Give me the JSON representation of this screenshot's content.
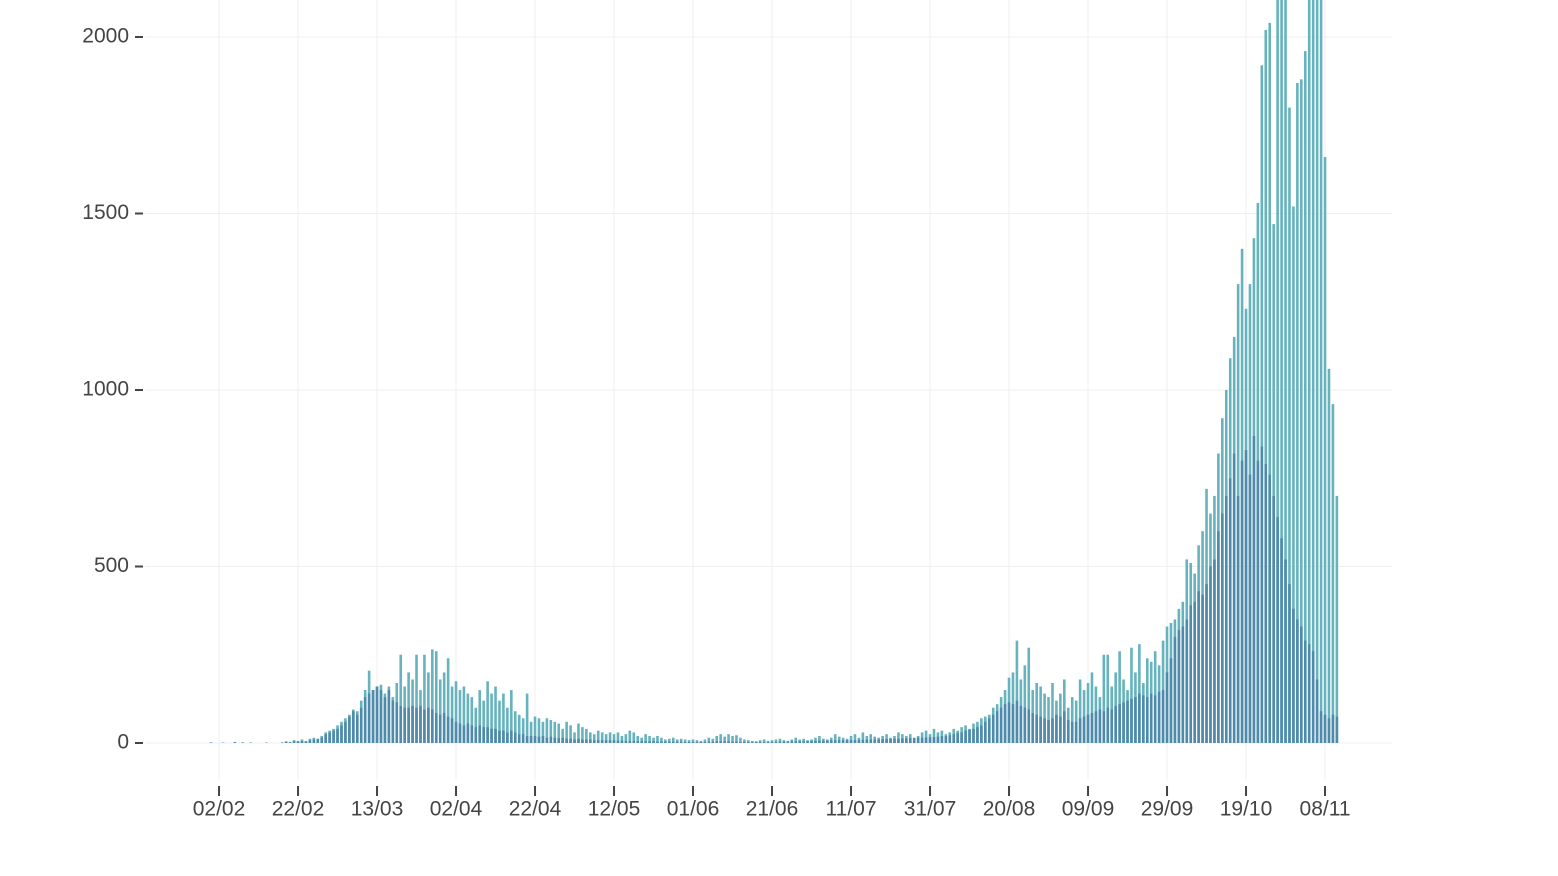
{
  "chart_data": {
    "type": "bar",
    "categories": [
      "28/01",
      "29/01",
      "30/01",
      "31/01",
      "01/02",
      "02/02",
      "03/02",
      "04/02",
      "05/02",
      "06/02",
      "07/02",
      "08/02",
      "09/02",
      "10/02",
      "11/02",
      "12/02",
      "13/02",
      "14/02",
      "15/02",
      "16/02",
      "17/02",
      "18/02",
      "19/02",
      "20/02",
      "21/02",
      "22/02",
      "23/02",
      "24/02",
      "25/02",
      "26/02",
      "27/02",
      "28/02",
      "29/02",
      "01/03",
      "02/03",
      "03/03",
      "04/03",
      "05/03",
      "06/03",
      "07/03",
      "08/03",
      "09/03",
      "10/03",
      "11/03",
      "12/03",
      "13/03",
      "14/03",
      "15/03",
      "16/03",
      "17/03",
      "18/03",
      "19/03",
      "20/03",
      "21/03",
      "22/03",
      "23/03",
      "24/03",
      "25/03",
      "26/03",
      "27/03",
      "28/03",
      "29/03",
      "30/03",
      "31/03",
      "01/04",
      "02/04",
      "03/04",
      "04/04",
      "05/04",
      "06/04",
      "07/04",
      "08/04",
      "09/04",
      "10/04",
      "11/04",
      "12/04",
      "13/04",
      "14/04",
      "15/04",
      "16/04",
      "17/04",
      "18/04",
      "19/04",
      "20/04",
      "21/04",
      "22/04",
      "23/04",
      "24/04",
      "25/04",
      "26/04",
      "27/04",
      "28/04",
      "29/04",
      "30/04",
      "01/05",
      "02/05",
      "03/05",
      "04/05",
      "05/05",
      "06/05",
      "07/05",
      "08/05",
      "09/05",
      "10/05",
      "11/05",
      "12/05",
      "13/05",
      "14/05",
      "15/05",
      "16/05",
      "17/05",
      "18/05",
      "19/05",
      "20/05",
      "21/05",
      "22/05",
      "23/05",
      "24/05",
      "25/05",
      "26/05",
      "27/05",
      "28/05",
      "29/05",
      "30/05",
      "31/05",
      "01/06",
      "02/06",
      "03/06",
      "04/06",
      "05/06",
      "06/06",
      "07/06",
      "08/06",
      "09/06",
      "10/06",
      "11/06",
      "12/06",
      "13/06",
      "14/06",
      "15/06",
      "16/06",
      "17/06",
      "18/06",
      "19/06",
      "20/06",
      "21/06",
      "22/06",
      "23/06",
      "24/06",
      "25/06",
      "26/06",
      "27/06",
      "28/06",
      "29/06",
      "30/06",
      "01/07",
      "02/07",
      "03/07",
      "04/07",
      "05/07",
      "06/07",
      "07/07",
      "08/07",
      "09/07",
      "10/07",
      "11/07",
      "12/07",
      "13/07",
      "14/07",
      "15/07",
      "16/07",
      "17/07",
      "18/07",
      "19/07",
      "20/07",
      "21/07",
      "22/07",
      "23/07",
      "24/07",
      "25/07",
      "26/07",
      "27/07",
      "28/07",
      "29/07",
      "30/07",
      "31/07",
      "01/08",
      "02/08",
      "03/08",
      "04/08",
      "05/08",
      "06/08",
      "07/08",
      "08/08",
      "09/08",
      "10/08",
      "11/08",
      "12/08",
      "13/08",
      "14/08",
      "15/08",
      "16/08",
      "17/08",
      "18/08",
      "19/08",
      "20/08",
      "21/08",
      "22/08",
      "23/08",
      "24/08",
      "25/08",
      "26/08",
      "27/08",
      "28/08",
      "29/08",
      "30/08",
      "31/08",
      "01/09",
      "02/09",
      "03/09",
      "04/09",
      "05/09",
      "06/09",
      "07/09",
      "08/09",
      "09/09",
      "10/09",
      "11/09",
      "12/09",
      "13/09",
      "14/09",
      "15/09",
      "16/09",
      "17/09",
      "18/09",
      "19/09",
      "20/09",
      "21/09",
      "22/09",
      "23/09",
      "24/09",
      "25/09",
      "26/09",
      "27/09",
      "28/09",
      "29/09",
      "30/09",
      "01/10",
      "02/10",
      "03/10",
      "04/10",
      "05/10",
      "06/10",
      "07/10",
      "08/10",
      "09/10",
      "10/10",
      "11/10",
      "12/10",
      "13/10",
      "14/10",
      "15/10",
      "16/10",
      "17/10",
      "18/10",
      "19/10",
      "20/10",
      "21/10",
      "22/10",
      "23/10",
      "24/10",
      "25/10",
      "26/10",
      "27/10",
      "28/10",
      "29/10",
      "30/10",
      "31/10",
      "01/11",
      "02/11",
      "03/11",
      "04/11",
      "05/11",
      "06/11",
      "07/11",
      "08/11",
      "09/11",
      "10/11",
      "11/11"
    ],
    "series": [
      {
        "color": "#66b3bd",
        "values": [
          0,
          0,
          0,
          2,
          0,
          0,
          1,
          0,
          0,
          3,
          0,
          2,
          0,
          1,
          0,
          0,
          0,
          1,
          0,
          0,
          0,
          2,
          5,
          3,
          8,
          6,
          10,
          5,
          12,
          15,
          10,
          20,
          30,
          35,
          40,
          50,
          60,
          70,
          80,
          95,
          90,
          120,
          150,
          205,
          150,
          160,
          165,
          140,
          160,
          130,
          170,
          250,
          160,
          200,
          180,
          250,
          150,
          250,
          200,
          265,
          260,
          180,
          200,
          240,
          160,
          175,
          150,
          160,
          140,
          130,
          100,
          150,
          120,
          175,
          140,
          160,
          120,
          140,
          100,
          150,
          90,
          80,
          70,
          140,
          60,
          75,
          70,
          60,
          70,
          65,
          60,
          55,
          40,
          60,
          50,
          30,
          55,
          45,
          40,
          30,
          25,
          35,
          30,
          25,
          30,
          25,
          30,
          20,
          25,
          35,
          30,
          20,
          15,
          25,
          20,
          15,
          20,
          15,
          10,
          12,
          15,
          10,
          12,
          10,
          8,
          10,
          8,
          6,
          10,
          15,
          12,
          20,
          25,
          18,
          25,
          20,
          22,
          15,
          10,
          8,
          6,
          5,
          8,
          10,
          6,
          8,
          10,
          12,
          8,
          6,
          10,
          15,
          10,
          12,
          8,
          10,
          15,
          20,
          12,
          10,
          15,
          25,
          18,
          15,
          12,
          20,
          25,
          15,
          30,
          20,
          25,
          18,
          15,
          20,
          25,
          15,
          20,
          30,
          25,
          20,
          25,
          15,
          20,
          30,
          35,
          25,
          40,
          30,
          35,
          25,
          30,
          40,
          35,
          45,
          50,
          40,
          55,
          60,
          70,
          75,
          80,
          100,
          110,
          130,
          150,
          185,
          200,
          290,
          180,
          220,
          270,
          150,
          170,
          160,
          140,
          130,
          170,
          120,
          140,
          180,
          100,
          130,
          120,
          180,
          150,
          170,
          200,
          160,
          130,
          250,
          250,
          160,
          200,
          260,
          180,
          150,
          270,
          200,
          280,
          170,
          240,
          230,
          260,
          220,
          290,
          330,
          340,
          350,
          380,
          400,
          520,
          510,
          480,
          560,
          600,
          720,
          650,
          700,
          820,
          920,
          1000,
          1090,
          1150,
          1300,
          1400,
          1230,
          1300,
          1430,
          1530,
          1920,
          2020,
          2040,
          1470,
          2200,
          2200,
          2200,
          1800,
          1520,
          1870,
          1880,
          1960,
          2200,
          2200,
          2200,
          2200,
          1660,
          1060,
          960,
          700
        ]
      },
      {
        "color": "#4f8aab",
        "values": [
          0,
          0,
          0,
          1,
          0,
          0,
          1,
          0,
          0,
          2,
          0,
          1,
          0,
          1,
          0,
          0,
          0,
          1,
          0,
          0,
          0,
          1,
          3,
          2,
          5,
          4,
          6,
          5,
          8,
          10,
          12,
          15,
          25,
          30,
          35,
          40,
          50,
          60,
          75,
          90,
          80,
          100,
          130,
          140,
          150,
          160,
          150,
          130,
          150,
          120,
          115,
          105,
          100,
          100,
          105,
          100,
          105,
          95,
          100,
          95,
          85,
          80,
          85,
          75,
          70,
          60,
          55,
          50,
          55,
          50,
          45,
          50,
          45,
          45,
          40,
          40,
          35,
          35,
          30,
          35,
          30,
          25,
          25,
          20,
          20,
          20,
          18,
          20,
          15,
          18,
          15,
          14,
          15,
          12,
          12,
          10,
          12,
          10,
          10,
          10,
          8,
          9,
          8,
          8,
          8,
          8,
          7,
          7,
          6,
          6,
          6,
          5,
          5,
          5,
          5,
          5,
          4,
          4,
          4,
          4,
          4,
          4,
          4,
          3,
          3,
          3,
          3,
          3,
          3,
          4,
          4,
          5,
          5,
          5,
          5,
          4,
          4,
          3,
          3,
          3,
          3,
          3,
          3,
          3,
          3,
          3,
          3,
          4,
          4,
          4,
          5,
          5,
          5,
          5,
          5,
          6,
          6,
          7,
          7,
          7,
          8,
          8,
          8,
          8,
          8,
          8,
          8,
          9,
          9,
          10,
          10,
          10,
          10,
          11,
          11,
          12,
          12,
          12,
          13,
          13,
          14,
          14,
          15,
          15,
          16,
          16,
          17,
          18,
          20,
          20,
          22,
          25,
          28,
          30,
          35,
          38,
          40,
          45,
          50,
          60,
          70,
          80,
          90,
          100,
          110,
          115,
          110,
          120,
          105,
          100,
          95,
          85,
          80,
          75,
          70,
          65,
          70,
          80,
          75,
          90,
          65,
          60,
          60,
          70,
          75,
          80,
          85,
          90,
          95,
          90,
          100,
          95,
          105,
          110,
          115,
          120,
          125,
          130,
          140,
          135,
          130,
          140,
          135,
          145,
          150,
          200,
          240,
          300,
          320,
          330,
          350,
          390,
          400,
          430,
          420,
          450,
          500,
          520,
          600,
          650,
          700,
          750,
          820,
          700,
          800,
          830,
          760,
          870,
          800,
          840,
          790,
          760,
          700,
          640,
          580,
          520,
          450,
          380,
          350,
          330,
          290,
          280,
          260,
          180,
          90,
          80,
          70,
          80,
          75
        ]
      }
    ],
    "ylim": [
      0,
      2105
    ],
    "yticks": [
      0,
      500,
      1000,
      1500,
      2000
    ],
    "xticks": [
      "02/02",
      "22/02",
      "13/03",
      "02/04",
      "22/04",
      "12/05",
      "01/06",
      "21/06",
      "11/07",
      "31/07",
      "20/08",
      "09/09",
      "29/09",
      "19/10",
      "08/11"
    ],
    "grid": true
  }
}
